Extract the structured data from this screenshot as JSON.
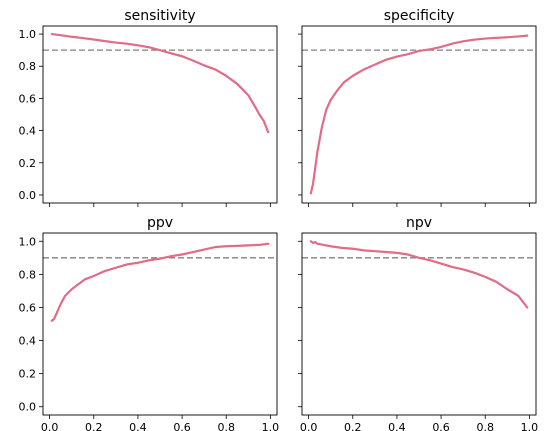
{
  "colors": {
    "curve": "#e06c85",
    "threshold": "#808080"
  },
  "chart_data": [
    {
      "type": "line",
      "title": "sensitivity",
      "xlim": [
        -0.03,
        1.03
      ],
      "ylim": [
        -0.05,
        1.05
      ],
      "xticks": [
        0.0,
        0.2,
        0.4,
        0.6,
        0.8,
        1.0
      ],
      "yticks": [
        0.0,
        0.2,
        0.4,
        0.6,
        0.8,
        1.0
      ],
      "xtick_labels_visible": false,
      "ytick_labels_visible": true,
      "threshold": 0.9,
      "x": [
        0.01,
        0.05,
        0.1,
        0.15,
        0.2,
        0.25,
        0.3,
        0.35,
        0.4,
        0.45,
        0.5,
        0.55,
        0.6,
        0.65,
        0.7,
        0.75,
        0.8,
        0.85,
        0.9,
        0.93,
        0.95,
        0.97,
        0.99
      ],
      "y": [
        1.0,
        0.993,
        0.983,
        0.975,
        0.966,
        0.956,
        0.947,
        0.94,
        0.93,
        0.918,
        0.9,
        0.88,
        0.862,
        0.835,
        0.805,
        0.78,
        0.74,
        0.69,
        0.62,
        0.55,
        0.5,
        0.46,
        0.39
      ]
    },
    {
      "type": "line",
      "title": "specificity",
      "xlim": [
        -0.03,
        1.03
      ],
      "ylim": [
        -0.05,
        1.05
      ],
      "xticks": [
        0.0,
        0.2,
        0.4,
        0.6,
        0.8,
        1.0
      ],
      "yticks": [
        0.0,
        0.2,
        0.4,
        0.6,
        0.8,
        1.0
      ],
      "xtick_labels_visible": false,
      "ytick_labels_visible": false,
      "threshold": 0.9,
      "x": [
        0.01,
        0.02,
        0.03,
        0.04,
        0.06,
        0.08,
        0.1,
        0.13,
        0.16,
        0.2,
        0.25,
        0.3,
        0.35,
        0.4,
        0.45,
        0.5,
        0.55,
        0.6,
        0.65,
        0.7,
        0.75,
        0.8,
        0.85,
        0.9,
        0.95,
        0.99
      ],
      "y": [
        0.01,
        0.07,
        0.17,
        0.27,
        0.42,
        0.53,
        0.59,
        0.65,
        0.7,
        0.74,
        0.78,
        0.81,
        0.84,
        0.86,
        0.875,
        0.895,
        0.905,
        0.92,
        0.94,
        0.955,
        0.965,
        0.972,
        0.976,
        0.98,
        0.985,
        0.99
      ]
    },
    {
      "type": "line",
      "title": "ppv",
      "xlim": [
        -0.03,
        1.03
      ],
      "ylim": [
        -0.05,
        1.05
      ],
      "xticks": [
        0.0,
        0.2,
        0.4,
        0.6,
        0.8,
        1.0
      ],
      "yticks": [
        0.0,
        0.2,
        0.4,
        0.6,
        0.8,
        1.0
      ],
      "xtick_labels_visible": true,
      "ytick_labels_visible": true,
      "threshold": 0.9,
      "x": [
        0.01,
        0.02,
        0.03,
        0.05,
        0.07,
        0.1,
        0.13,
        0.16,
        0.2,
        0.25,
        0.3,
        0.35,
        0.4,
        0.45,
        0.5,
        0.55,
        0.6,
        0.65,
        0.7,
        0.75,
        0.8,
        0.85,
        0.9,
        0.95,
        0.99
      ],
      "y": [
        0.52,
        0.53,
        0.56,
        0.62,
        0.67,
        0.71,
        0.74,
        0.77,
        0.79,
        0.82,
        0.84,
        0.86,
        0.87,
        0.885,
        0.895,
        0.91,
        0.92,
        0.935,
        0.95,
        0.965,
        0.97,
        0.972,
        0.975,
        0.978,
        0.985
      ]
    },
    {
      "type": "line",
      "title": "npv",
      "xlim": [
        -0.03,
        1.03
      ],
      "ylim": [
        -0.05,
        1.05
      ],
      "xticks": [
        0.0,
        0.2,
        0.4,
        0.6,
        0.8,
        1.0
      ],
      "yticks": [
        0.0,
        0.2,
        0.4,
        0.6,
        0.8,
        1.0
      ],
      "xtick_labels_visible": true,
      "ytick_labels_visible": false,
      "threshold": 0.9,
      "x": [
        0.01,
        0.02,
        0.03,
        0.04,
        0.06,
        0.1,
        0.15,
        0.2,
        0.25,
        0.3,
        0.35,
        0.4,
        0.45,
        0.5,
        0.55,
        0.6,
        0.65,
        0.7,
        0.75,
        0.8,
        0.85,
        0.9,
        0.95,
        0.99
      ],
      "y": [
        1.0,
        0.99,
        0.995,
        0.985,
        0.98,
        0.97,
        0.96,
        0.955,
        0.945,
        0.94,
        0.935,
        0.93,
        0.92,
        0.9,
        0.885,
        0.865,
        0.845,
        0.83,
        0.81,
        0.785,
        0.755,
        0.71,
        0.67,
        0.6
      ]
    }
  ]
}
